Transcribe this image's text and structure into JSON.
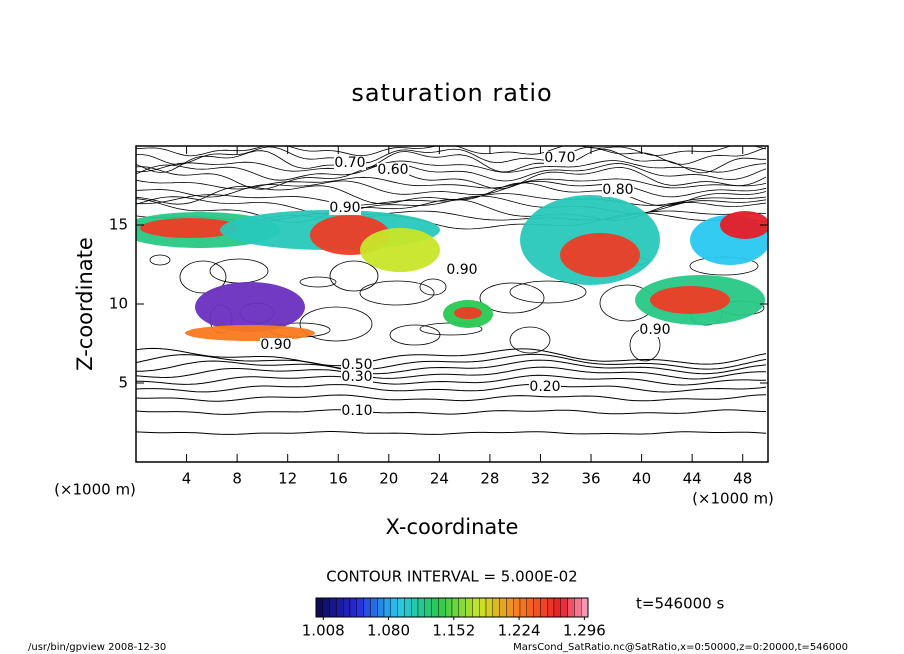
{
  "chart_data": {
    "type": "contour",
    "title": "saturation ratio",
    "xlabel": "X-coordinate",
    "ylabel": "Z-coordinate",
    "xunit": "(×1000 m)",
    "yunit": "(×1000 m)",
    "xlim": [
      0,
      50
    ],
    "ylim": [
      0,
      20
    ],
    "xticks": [
      4,
      8,
      12,
      16,
      20,
      24,
      28,
      32,
      36,
      40,
      44,
      48
    ],
    "yticks": [
      5,
      10,
      15
    ],
    "contour_labels": [
      "0.70",
      "0.60",
      "0.70",
      "0.90",
      "0.80",
      "0.90",
      "0.90",
      "0.50",
      "0.30",
      "0.20",
      "0.10",
      "0.90"
    ],
    "contour_interval_label": "CONTOUR INTERVAL = 5.000E-02",
    "colorbar_lim": [
      1.0,
      1.3
    ],
    "colorbar_ticks": [
      {
        "value": 1.008,
        "label": "1.008"
      },
      {
        "value": 1.08,
        "label": "1.080"
      },
      {
        "value": 1.152,
        "label": "1.152"
      },
      {
        "value": 1.224,
        "label": "1.224"
      },
      {
        "value": 1.296,
        "label": "1.296"
      }
    ],
    "time_label": "t=546000 s",
    "footer_left": "/usr/bin/gpview   2008-12-30",
    "footer_right": "MarsCond_SatRatio.nc@SatRatio,x=0:50000,z=0:20000,t=546000"
  }
}
